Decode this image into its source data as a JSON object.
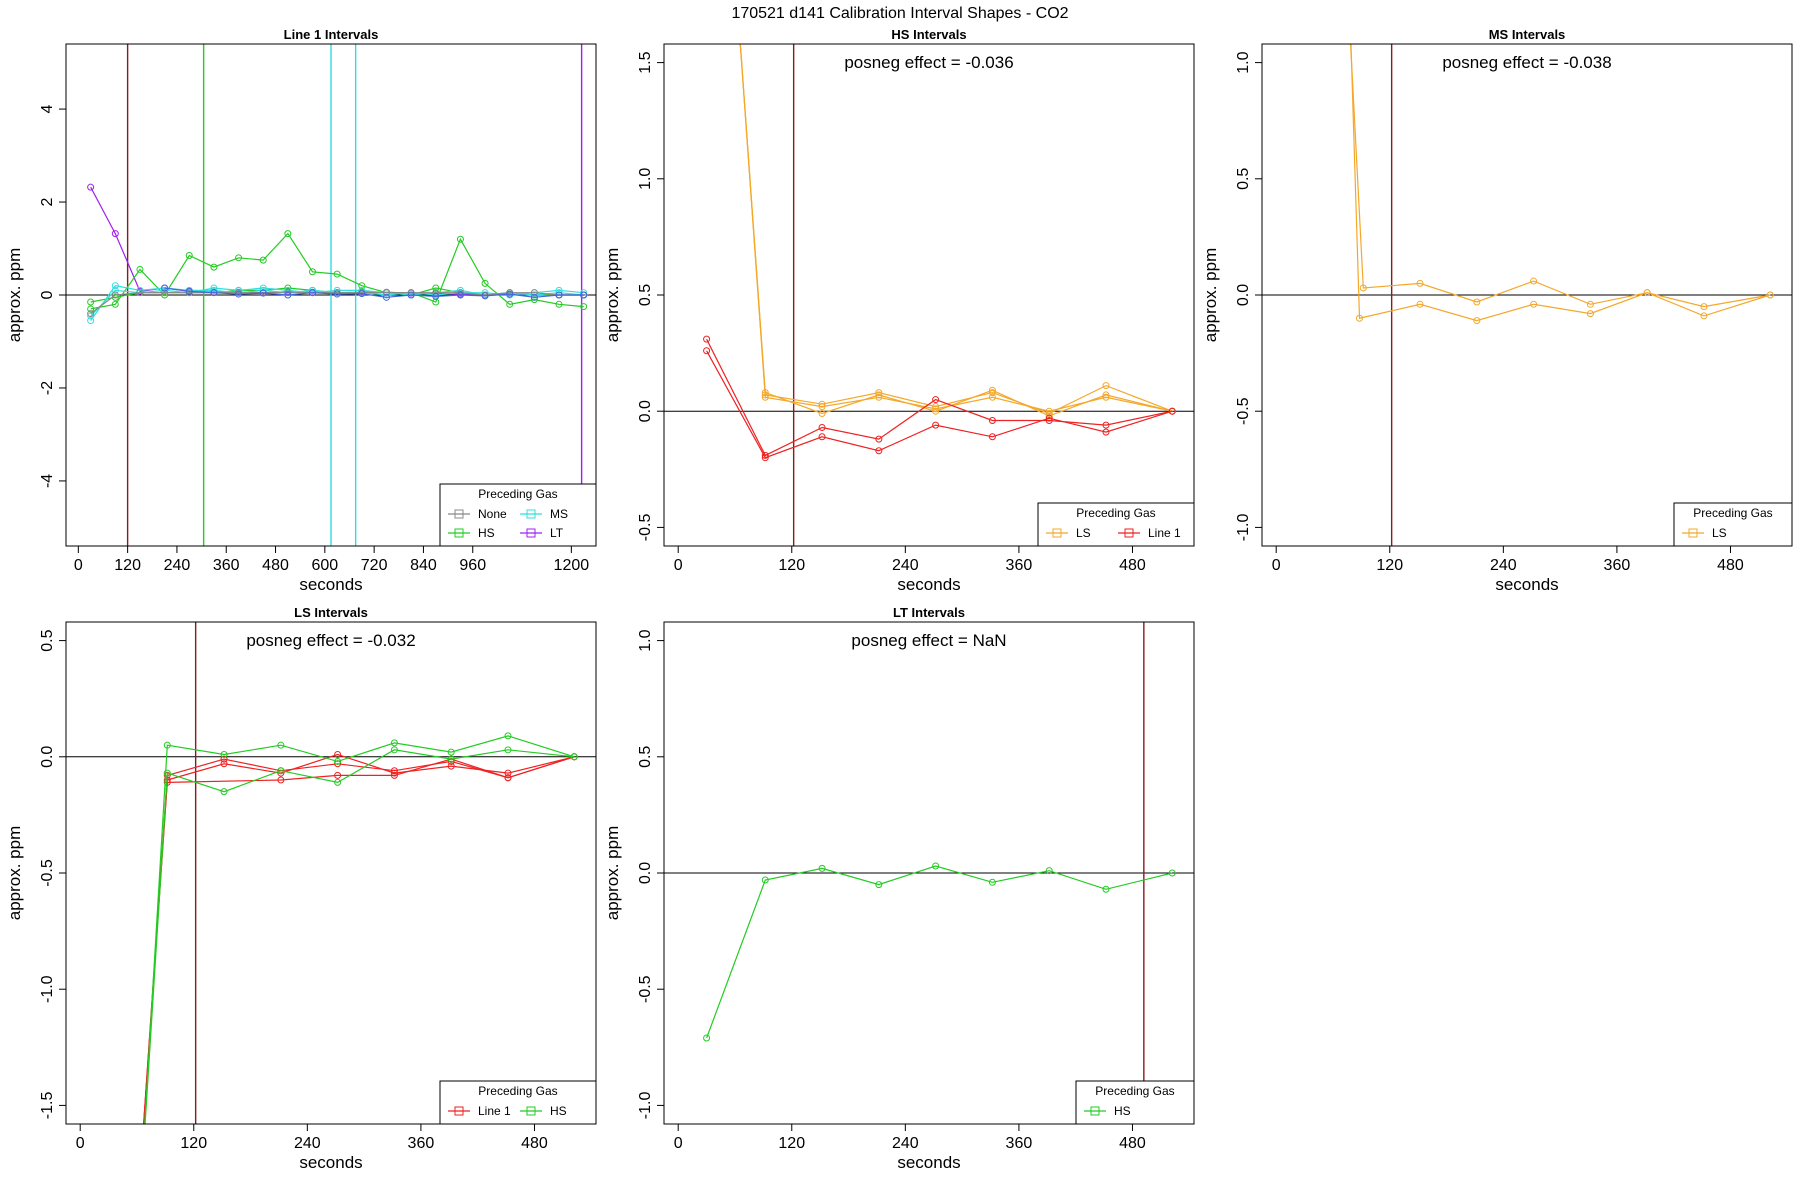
{
  "figure": {
    "title": "170521  d141   Calibration Interval Shapes - CO2"
  },
  "chart_data": [
    {
      "type": "line",
      "title": "Line 1 Intervals",
      "xlabel": "seconds",
      "ylabel": "approx. ppm",
      "xlim": [
        -30,
        1260
      ],
      "ylim": [
        -5.4,
        5.4
      ],
      "xticks": [
        0,
        120,
        240,
        360,
        480,
        600,
        720,
        840,
        960,
        1200
      ],
      "xtick_labels": [
        "0",
        "120",
        "240",
        "360",
        "480",
        "600",
        "720",
        "840",
        "960",
        "1200"
      ],
      "yticks": [
        -4,
        -2,
        0,
        2,
        4
      ],
      "ytick_labels": [
        "-4",
        "-2",
        "0",
        "2",
        "4"
      ],
      "annotation": "",
      "vlines": [
        {
          "x": 120,
          "color": "#8b1a1a"
        },
        {
          "x": 305,
          "color": "#22cc22"
        },
        {
          "x": 615,
          "color": "#33dddd"
        },
        {
          "x": 675,
          "color": "#33dddd"
        },
        {
          "x": 1225,
          "color": "#a020f0"
        }
      ],
      "legend": {
        "title": "Preceding Gas",
        "position": "bottom-right",
        "entries": [
          {
            "label": "None",
            "color": "#888888"
          },
          {
            "label": "MS",
            "color": "#33dddd"
          },
          {
            "label": "HS",
            "color": "#22cc22"
          },
          {
            "label": "LT",
            "color": "#a020f0"
          }
        ]
      },
      "series": [
        {
          "name": "LT",
          "color": "#a020f0",
          "x": [
            30,
            90,
            150,
            210,
            270,
            330,
            390,
            450,
            510,
            570,
            630,
            690,
            750,
            810,
            870,
            930,
            990,
            1050,
            1110,
            1170,
            1230
          ],
          "y": [
            2.32,
            1.32,
            0.08,
            0.15,
            0.08,
            0.06,
            0.06,
            0.05,
            0.07,
            0.06,
            0.05,
            0.06,
            0.06,
            0.04,
            0.03,
            0.02,
            0.0,
            0.01,
            0.0,
            0.0,
            0.0
          ]
        },
        {
          "name": "HS",
          "color": "#22cc22",
          "x": [
            30,
            90,
            150,
            210,
            270,
            330,
            390,
            450,
            510,
            570,
            630,
            690,
            750,
            810,
            870,
            930,
            990,
            1050,
            1110,
            1170,
            1230
          ],
          "y": [
            -0.3,
            -0.2,
            0.55,
            0.0,
            0.85,
            0.6,
            0.8,
            0.75,
            1.32,
            0.5,
            0.45,
            0.2,
            0.05,
            0.05,
            -0.15,
            1.2,
            0.25,
            -0.2,
            -0.1,
            -0.2,
            -0.25
          ]
        },
        {
          "name": "HS",
          "color": "#22cc22",
          "x": [
            30,
            90,
            150,
            210,
            270,
            330,
            390,
            450,
            510,
            570,
            630,
            690,
            750,
            810,
            870,
            930,
            990,
            1050,
            1110,
            1170,
            1230
          ],
          "y": [
            -0.15,
            -0.05,
            0.05,
            0.05,
            0.05,
            0.05,
            0.1,
            0.1,
            0.15,
            0.1,
            0.05,
            0.05,
            0.05,
            0.0,
            0.15,
            0.05,
            0.0,
            0.05,
            0.0,
            0.0,
            0.0
          ]
        },
        {
          "name": "MS",
          "color": "#33dddd",
          "x": [
            30,
            90,
            150,
            210,
            270,
            330,
            390,
            450,
            510,
            570,
            630,
            690,
            750,
            810,
            870,
            930,
            990,
            1050,
            1110,
            1170,
            1230
          ],
          "y": [
            -0.55,
            0.2,
            0.1,
            0.15,
            0.1,
            0.1,
            0.05,
            0.1,
            0.05,
            0.1,
            0.05,
            0.05,
            0.0,
            0.05,
            0.0,
            0.05,
            0.05,
            0.0,
            0.05,
            0.1,
            0.05
          ]
        },
        {
          "name": "MS",
          "color": "#33dddd",
          "x": [
            30,
            90,
            150,
            210,
            270,
            330,
            390,
            450,
            510,
            570,
            630,
            690,
            750,
            810,
            870,
            930,
            990,
            1050,
            1110,
            1170,
            1230
          ],
          "y": [
            -0.45,
            0.1,
            0.05,
            0.1,
            0.05,
            0.15,
            0.1,
            0.15,
            0.1,
            0.05,
            0.1,
            0.1,
            0.05,
            0.0,
            0.05,
            0.1,
            0.0,
            0.05,
            0.0,
            0.05,
            0.0
          ]
        },
        {
          "name": "None",
          "color": "#888888",
          "x": [
            30,
            90,
            150,
            210,
            270,
            330,
            390,
            450,
            510,
            570,
            630,
            690,
            750,
            810,
            870,
            930,
            990,
            1050,
            1110,
            1170,
            1230
          ],
          "y": [
            -0.4,
            0.0,
            0.05,
            0.05,
            0.05,
            0.05,
            0.05,
            0.05,
            0.05,
            0.05,
            0.05,
            0.05,
            0.05,
            0.05,
            0.05,
            0.05,
            0.0,
            0.05,
            0.05,
            0.0,
            0.0
          ]
        },
        {
          "name": "Line 1",
          "color": "#4466dd",
          "x": [
            210,
            270,
            330,
            390,
            450,
            510,
            570,
            630,
            690,
            750,
            810,
            870,
            930,
            990,
            1050,
            1110,
            1170,
            1230
          ],
          "y": [
            0.15,
            0.08,
            0.05,
            0.02,
            0.04,
            0.0,
            0.05,
            0.02,
            0.03,
            -0.05,
            0.0,
            -0.03,
            0.0,
            -0.02,
            0.02,
            -0.05,
            0.0,
            0.0
          ]
        }
      ]
    },
    {
      "type": "line",
      "title": "HS Intervals",
      "xlabel": "seconds",
      "ylabel": "approx. ppm",
      "xlim": [
        -15,
        545
      ],
      "ylim": [
        -0.58,
        1.58
      ],
      "xticks": [
        0,
        120,
        240,
        360,
        480
      ],
      "xtick_labels": [
        "0",
        "120",
        "240",
        "360",
        "480"
      ],
      "yticks": [
        -0.5,
        0.0,
        0.5,
        1.0,
        1.5
      ],
      "ytick_labels": [
        "-0.5",
        "0.0",
        "0.5",
        "1.0",
        "1.5"
      ],
      "annotation": "posneg effect = -0.036",
      "vlines": [
        {
          "x": 122,
          "color": "#8b1a1a"
        }
      ],
      "legend": {
        "title": "Preceding Gas",
        "position": "bottom-right",
        "entries": [
          {
            "label": "LS",
            "color": "#f4a82a"
          },
          {
            "label": "Line 1",
            "color": "#ee2222"
          }
        ]
      },
      "series": [
        {
          "name": "LS",
          "color": "#f4a82a",
          "x": [
            60,
            92,
            152,
            212,
            272,
            332,
            392,
            452,
            522
          ],
          "y": [
            1.9,
            0.07,
            0.03,
            0.08,
            0.02,
            0.08,
            -0.01,
            0.11,
            0.0
          ]
        },
        {
          "name": "LS",
          "color": "#f4a82a",
          "x": [
            60,
            92,
            152,
            212,
            272,
            332,
            392,
            452,
            522
          ],
          "y": [
            1.9,
            0.08,
            -0.01,
            0.07,
            0.0,
            0.09,
            -0.02,
            0.07,
            0.0
          ]
        },
        {
          "name": "LS",
          "color": "#f4a82a",
          "x": [
            60,
            92,
            152,
            212,
            272,
            332,
            392,
            452,
            522
          ],
          "y": [
            1.9,
            0.06,
            0.02,
            0.06,
            0.01,
            0.06,
            0.0,
            0.06,
            0.0
          ]
        },
        {
          "name": "Line 1",
          "color": "#ee2222",
          "x": [
            30,
            92,
            152,
            212,
            272,
            332,
            392,
            452,
            522
          ],
          "y": [
            0.31,
            -0.19,
            -0.07,
            -0.12,
            0.05,
            -0.04,
            -0.04,
            -0.06,
            0.0
          ]
        },
        {
          "name": "Line 1",
          "color": "#ee2222",
          "x": [
            30,
            92,
            152,
            212,
            272,
            332,
            392,
            452,
            522
          ],
          "y": [
            0.26,
            -0.2,
            -0.11,
            -0.17,
            -0.06,
            -0.11,
            -0.03,
            -0.09,
            0.0
          ]
        }
      ]
    },
    {
      "type": "line",
      "title": "MS Intervals",
      "xlabel": "seconds",
      "ylabel": "approx. ppm",
      "xlim": [
        -15,
        545
      ],
      "ylim": [
        -1.08,
        1.08
      ],
      "xticks": [
        0,
        120,
        240,
        360,
        480
      ],
      "xtick_labels": [
        "0",
        "120",
        "240",
        "360",
        "480"
      ],
      "yticks": [
        -1.0,
        -0.5,
        0.0,
        0.5,
        1.0
      ],
      "ytick_labels": [
        "-1.0",
        "-0.5",
        "0.0",
        "0.5",
        "1.0"
      ],
      "annotation": "posneg effect = -0.038",
      "vlines": [
        {
          "x": 122,
          "color": "#8b1a1a"
        }
      ],
      "legend": {
        "title": "Preceding Gas",
        "position": "bottom-right",
        "entries": [
          {
            "label": "LS",
            "color": "#f4a82a"
          }
        ]
      },
      "series": [
        {
          "name": "LS",
          "color": "#f4a82a",
          "x": [
            72,
            92,
            152,
            212,
            272,
            332,
            392,
            452,
            522
          ],
          "y": [
            1.6,
            0.03,
            0.05,
            -0.03,
            0.06,
            -0.04,
            0.01,
            -0.05,
            0.0
          ]
        },
        {
          "name": "LS",
          "color": "#f4a82a",
          "x": [
            75,
            88,
            152,
            212,
            272,
            332,
            392,
            452,
            522
          ],
          "y": [
            1.6,
            -0.1,
            -0.04,
            -0.11,
            -0.04,
            -0.08,
            0.01,
            -0.09,
            0.0
          ]
        }
      ]
    },
    {
      "type": "line",
      "title": "LS Intervals",
      "xlabel": "seconds",
      "ylabel": "approx. ppm",
      "xlim": [
        -15,
        545
      ],
      "ylim": [
        -1.58,
        0.58
      ],
      "xticks": [
        0,
        120,
        240,
        360,
        480
      ],
      "xtick_labels": [
        "0",
        "120",
        "240",
        "360",
        "480"
      ],
      "yticks": [
        -1.5,
        -1.0,
        -0.5,
        0.0,
        0.5
      ],
      "ytick_labels": [
        "-1.5",
        "-1.0",
        "-0.5",
        "0.0",
        "0.5"
      ],
      "annotation": "posneg effect = -0.032",
      "vlines": [
        {
          "x": 122,
          "color": "#8b1a1a"
        }
      ],
      "legend": {
        "title": "Preceding Gas",
        "position": "bottom-right",
        "entries": [
          {
            "label": "Line 1",
            "color": "#ee2222"
          },
          {
            "label": "HS",
            "color": "#22cc22"
          }
        ]
      },
      "series": [
        {
          "name": "Line 1",
          "color": "#ee2222",
          "x": [
            60,
            92,
            152,
            212,
            272,
            332,
            392,
            452,
            522
          ],
          "y": [
            -2.0,
            -0.08,
            -0.01,
            -0.06,
            -0.03,
            -0.06,
            -0.02,
            -0.09,
            0.0
          ]
        },
        {
          "name": "Line 1",
          "color": "#ee2222",
          "x": [
            60,
            92,
            152,
            212,
            272,
            332,
            392,
            452,
            522
          ],
          "y": [
            -2.0,
            -0.1,
            -0.03,
            -0.07,
            0.01,
            -0.07,
            -0.04,
            -0.07,
            0.0
          ]
        },
        {
          "name": "Line 1",
          "color": "#ee2222",
          "x": [
            60,
            92,
            212,
            272,
            332,
            392,
            452,
            522
          ],
          "y": [
            -2.0,
            -0.11,
            -0.1,
            -0.08,
            -0.08,
            -0.01,
            -0.09,
            0.0
          ]
        },
        {
          "name": "HS",
          "color": "#22cc22",
          "x": [
            62,
            92,
            152,
            212,
            272,
            332,
            392,
            452,
            522
          ],
          "y": [
            -2.0,
            0.05,
            0.01,
            0.05,
            -0.02,
            0.06,
            0.02,
            0.09,
            0.0
          ]
        },
        {
          "name": "HS",
          "color": "#22cc22",
          "x": [
            62,
            92,
            152,
            212,
            272,
            332,
            392,
            452,
            522
          ],
          "y": [
            -2.0,
            -0.07,
            -0.15,
            -0.06,
            -0.11,
            0.03,
            -0.01,
            0.03,
            0.0
          ]
        }
      ]
    },
    {
      "type": "line",
      "title": "LT Intervals",
      "xlabel": "seconds",
      "ylabel": "approx. ppm",
      "xlim": [
        -15,
        545
      ],
      "ylim": [
        -1.08,
        1.08
      ],
      "xticks": [
        0,
        120,
        240,
        360,
        480
      ],
      "xtick_labels": [
        "0",
        "120",
        "240",
        "360",
        "480"
      ],
      "yticks": [
        -1.0,
        -0.5,
        0.0,
        0.5,
        1.0
      ],
      "ytick_labels": [
        "-1.0",
        "-0.5",
        "0.0",
        "0.5",
        "1.0"
      ],
      "annotation": "posneg effect = NaN",
      "vlines": [
        {
          "x": 492,
          "color": "#8b1a1a"
        }
      ],
      "legend": {
        "title": "Preceding Gas",
        "position": "bottom-right",
        "entries": [
          {
            "label": "HS",
            "color": "#22cc22"
          }
        ]
      },
      "series": [
        {
          "name": "HS",
          "color": "#22cc22",
          "x": [
            30,
            92,
            152,
            212,
            272,
            332,
            392,
            452,
            522
          ],
          "y": [
            -0.71,
            -0.03,
            0.02,
            -0.05,
            0.03,
            -0.04,
            0.01,
            -0.07,
            0.0
          ]
        }
      ]
    }
  ]
}
